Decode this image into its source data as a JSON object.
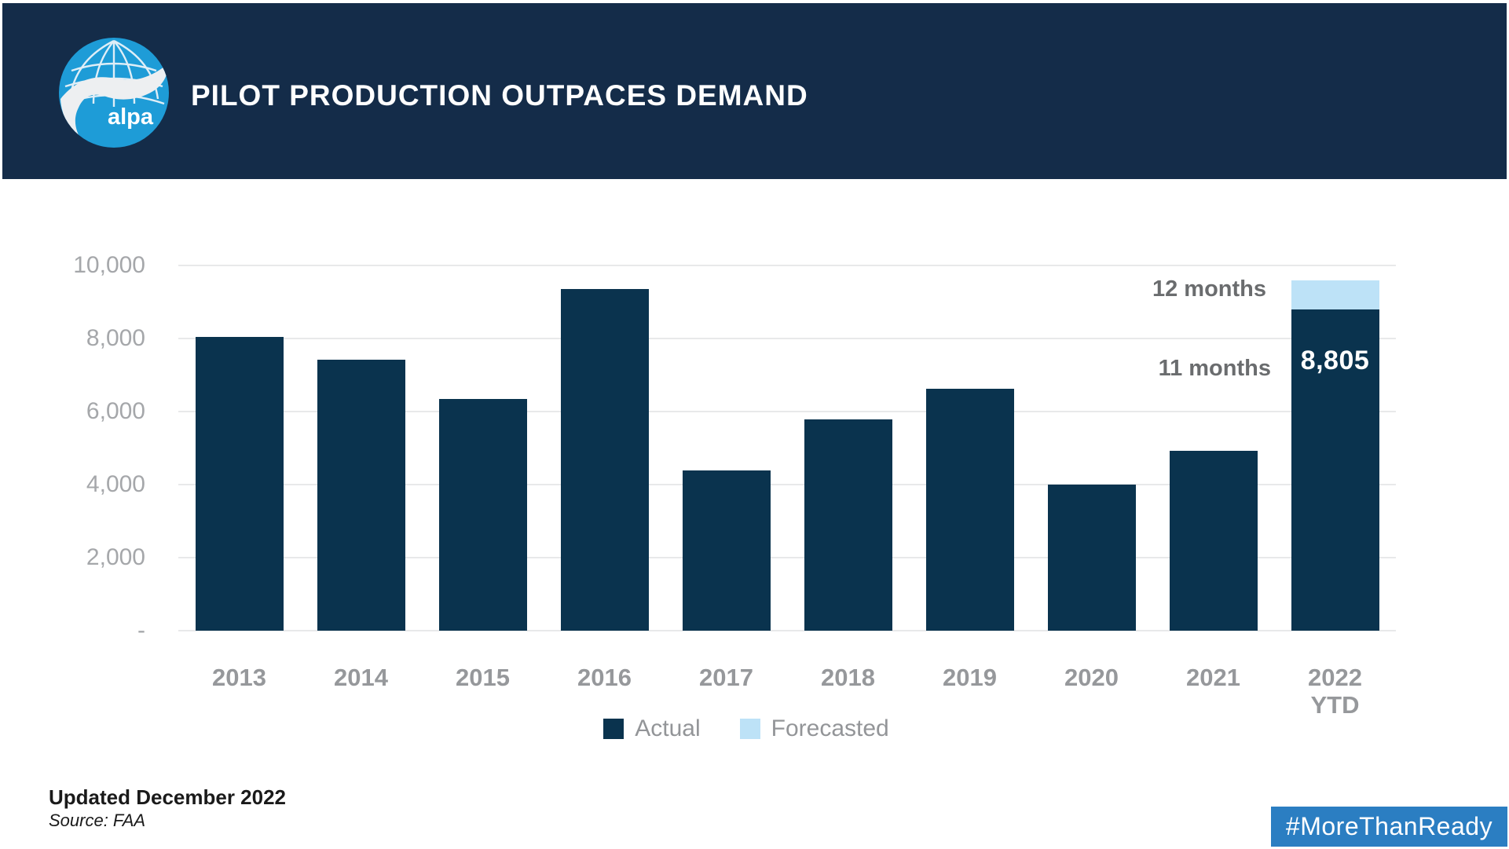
{
  "header": {
    "title": "PILOT PRODUCTION OUTPACES DEMAND",
    "logo_text": "alpa"
  },
  "chart_data": {
    "type": "bar",
    "title": "PILOT PRODUCTION OUTPACES DEMAND",
    "stacked": true,
    "categories": [
      "2013",
      "2014",
      "2015",
      "2016",
      "2017",
      "2018",
      "2019",
      "2020",
      "2021",
      "2022"
    ],
    "category_sublabels": [
      "",
      "",
      "",
      "",
      "",
      "",
      "",
      "",
      "",
      "YTD"
    ],
    "series": [
      {
        "name": "Actual",
        "color": "#0A334E",
        "values": [
          8050,
          7420,
          6340,
          9360,
          4380,
          5780,
          6630,
          3990,
          4930,
          8805
        ]
      },
      {
        "name": "Forecasted",
        "color": "#BDE2F7",
        "values": [
          null,
          null,
          null,
          null,
          null,
          null,
          null,
          null,
          null,
          795
        ]
      }
    ],
    "value_label": {
      "category_index": 9,
      "text": "8,805"
    },
    "annotations": [
      {
        "text": "12 months",
        "points_to": "2022 forecasted top"
      },
      {
        "text": "11 months",
        "points_to": "2022 actual top"
      }
    ],
    "ylim": [
      0,
      10000
    ],
    "y_tick_labels": [
      "10,000",
      "8,000",
      "6,000",
      "4,000",
      "2,000",
      "-"
    ],
    "grid": "horizontal",
    "legend_position": "bottom"
  },
  "legend": {
    "items": [
      {
        "label": "Actual",
        "color": "#0A334E"
      },
      {
        "label": "Forecasted",
        "color": "#BDE2F7"
      }
    ]
  },
  "footer": {
    "updated": "Updated December 2022",
    "source": "Source: FAA"
  },
  "badge": {
    "text": "#MoreThanReady",
    "color": "#2B7EC2"
  },
  "colors": {
    "header_bg": "#142C49",
    "actual": "#0A334E",
    "forecasted": "#BDE2F7",
    "badge_bg": "#2B7EC2",
    "logo_blue": "#1E9CD7",
    "gridline": "#E8E9EA"
  }
}
